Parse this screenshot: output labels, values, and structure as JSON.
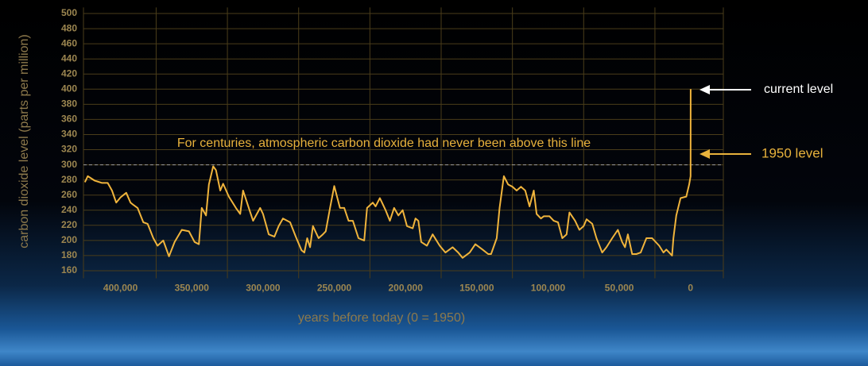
{
  "chart_data": {
    "type": "line",
    "x_label": "years before today (0 = 1950)",
    "y_label": "carbon dioxide level (parts per million)",
    "color": "#f0b43c",
    "xlim": [
      426000,
      -23000
    ],
    "ylim": [
      150,
      508
    ],
    "xticks": [
      {
        "value": 400000,
        "label": "400,000"
      },
      {
        "value": 350000,
        "label": "350,000"
      },
      {
        "value": 300000,
        "label": "300,000"
      },
      {
        "value": 250000,
        "label": "250,000"
      },
      {
        "value": 200000,
        "label": "200,000"
      },
      {
        "value": 150000,
        "label": "150,000"
      },
      {
        "value": 100000,
        "label": "100,000"
      },
      {
        "value": 50000,
        "label": "50,000"
      },
      0
    ],
    "xgrid": [
      375000,
      325000,
      275000,
      225000,
      175000,
      125000,
      75000,
      25000
    ],
    "yticks": [
      160,
      180,
      200,
      220,
      240,
      260,
      280,
      300,
      320,
      340,
      360,
      380,
      400,
      420,
      440,
      460,
      480,
      500
    ],
    "grid": true,
    "reference_line": {
      "value": 300,
      "label": "For centuries, atmospheric carbon dioxide had never been above this line"
    },
    "annotations": [
      {
        "label": "current level",
        "x": -70,
        "y": 400,
        "color": "#ffffff"
      },
      {
        "label": "1950 level",
        "x": 0,
        "y": 310,
        "color": "#e8b23c"
      }
    ],
    "x": [
      425000,
      423000,
      418000,
      413000,
      409000,
      406000,
      403000,
      400000,
      396000,
      393000,
      391000,
      388000,
      384000,
      381000,
      377000,
      374000,
      370000,
      366000,
      362000,
      357000,
      352000,
      348000,
      345000,
      343000,
      340000,
      338000,
      335000,
      333000,
      330000,
      328000,
      324000,
      319000,
      316000,
      314000,
      310000,
      307000,
      302000,
      300000,
      296000,
      292000,
      289000,
      286000,
      281000,
      277000,
      273000,
      271000,
      269000,
      267000,
      265000,
      261000,
      258000,
      256000,
      253000,
      250000,
      246000,
      243000,
      240000,
      237000,
      233000,
      229000,
      227000,
      223000,
      221000,
      218000,
      214000,
      211000,
      208000,
      205000,
      202000,
      199000,
      195000,
      193000,
      191000,
      189000,
      185000,
      181000,
      176000,
      172000,
      167000,
      163000,
      160000,
      155000,
      151000,
      146000,
      142000,
      140000,
      136000,
      134000,
      131000,
      128000,
      125000,
      122000,
      119000,
      116000,
      113000,
      110000,
      108000,
      105000,
      103000,
      99000,
      96000,
      93000,
      90000,
      87000,
      85000,
      81000,
      78000,
      75000,
      73000,
      69000,
      66000,
      62000,
      59000,
      55000,
      51000,
      48000,
      46000,
      44000,
      41000,
      38000,
      35000,
      31000,
      27000,
      22000,
      19000,
      17000,
      13000,
      12000,
      10000,
      7000,
      3000,
      1000,
      0,
      -70
    ],
    "values": [
      277,
      285,
      279,
      276,
      276,
      266,
      250,
      257,
      263,
      250,
      247,
      243,
      224,
      222,
      203,
      193,
      200,
      179,
      198,
      214,
      212,
      198,
      195,
      243,
      233,
      274,
      298,
      293,
      266,
      275,
      258,
      243,
      235,
      266,
      243,
      226,
      243,
      235,
      208,
      205,
      219,
      229,
      224,
      205,
      187,
      184,
      203,
      191,
      219,
      203,
      208,
      212,
      243,
      272,
      243,
      243,
      226,
      226,
      203,
      200,
      243,
      250,
      245,
      256,
      240,
      226,
      243,
      233,
      240,
      219,
      216,
      229,
      226,
      198,
      193,
      208,
      193,
      184,
      191,
      184,
      177,
      184,
      195,
      188,
      182,
      182,
      203,
      243,
      285,
      274,
      271,
      266,
      271,
      266,
      245,
      266,
      235,
      229,
      232,
      232,
      226,
      224,
      203,
      208,
      237,
      226,
      214,
      219,
      228,
      222,
      203,
      184,
      191,
      203,
      214,
      198,
      191,
      208,
      182,
      182,
      184,
      203,
      203,
      193,
      184,
      188,
      180,
      203,
      233,
      256,
      258,
      274,
      285,
      400
    ]
  }
}
